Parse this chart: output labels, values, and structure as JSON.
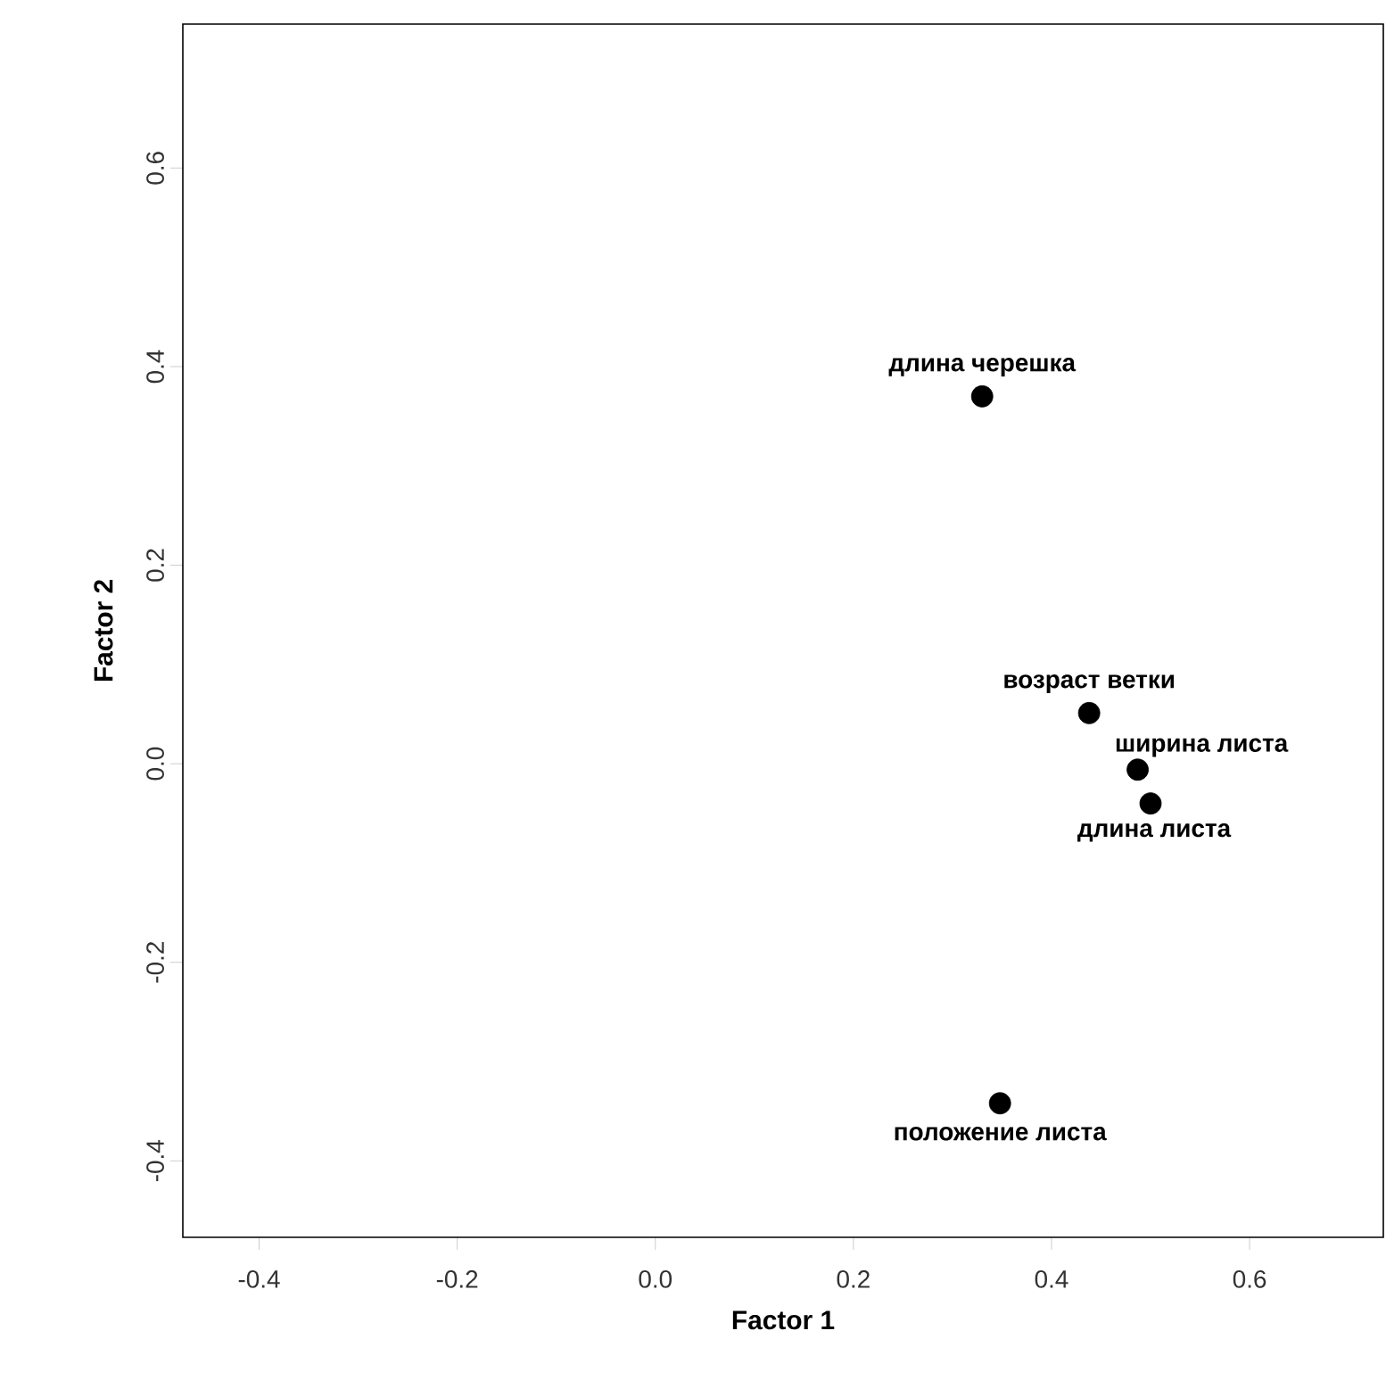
{
  "chart_data": {
    "type": "scatter",
    "xlabel": "Factor 1",
    "ylabel": "Factor 2",
    "x": [
      0.33,
      0.438,
      0.487,
      0.5,
      0.348
    ],
    "values": [
      0.37,
      0.051,
      -0.006,
      -0.04,
      -0.342
    ],
    "color": "#000000",
    "marker": "circle",
    "xlim": [
      -0.477,
      0.735
    ],
    "ylim": [
      -0.477,
      0.745
    ],
    "xticks": [
      -0.4,
      -0.2,
      {
        "value": 0,
        "label": "0.0"
      },
      0.2,
      0.4,
      0.6
    ],
    "yticks": [
      -0.4,
      -0.2,
      {
        "value": 0,
        "label": "0.0"
      },
      0.2,
      0.4,
      0.6
    ],
    "grid": false,
    "annotations": [
      {
        "text": "длина черешка",
        "x": 0.33,
        "y": 0.37
      },
      {
        "text": "возраст ветки",
        "x": 0.438,
        "y": 0.051
      },
      {
        "text": "ширина листа",
        "x": 0.487,
        "y": -0.006
      },
      {
        "text": "длина листа",
        "x": 0.5,
        "y": -0.04
      },
      {
        "text": "положение листа",
        "x": 0.348,
        "y": -0.342
      }
    ]
  }
}
